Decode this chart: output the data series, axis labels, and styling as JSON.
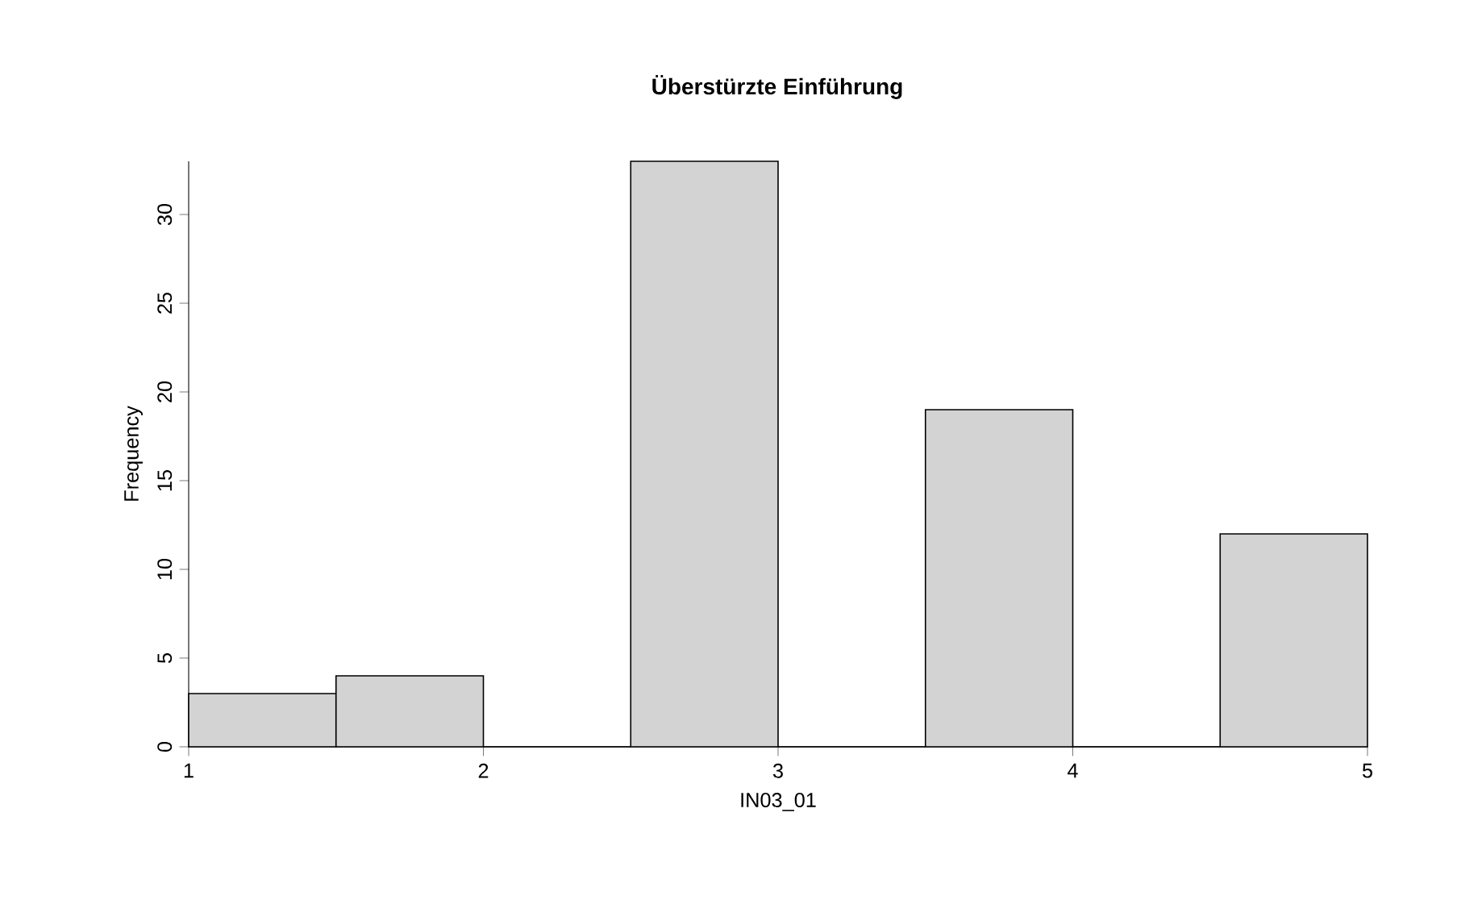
{
  "chart_data": {
    "type": "histogram",
    "title": "Überstürzte Einführung",
    "xlabel": "IN03_01",
    "ylabel": "Frequency",
    "bins": [
      1,
      1.5,
      2,
      2.5,
      3,
      3.5,
      4,
      4.5,
      5
    ],
    "values": [
      3,
      4,
      0,
      33,
      0,
      19,
      0,
      12
    ],
    "color": "#d3d3d3",
    "xlim": [
      1,
      5
    ],
    "ylim": [
      0,
      33
    ],
    "xticks": [
      1,
      2,
      3,
      4,
      5
    ],
    "yticks": [
      0,
      5,
      10,
      15,
      20,
      25,
      30
    ],
    "grid": false
  }
}
